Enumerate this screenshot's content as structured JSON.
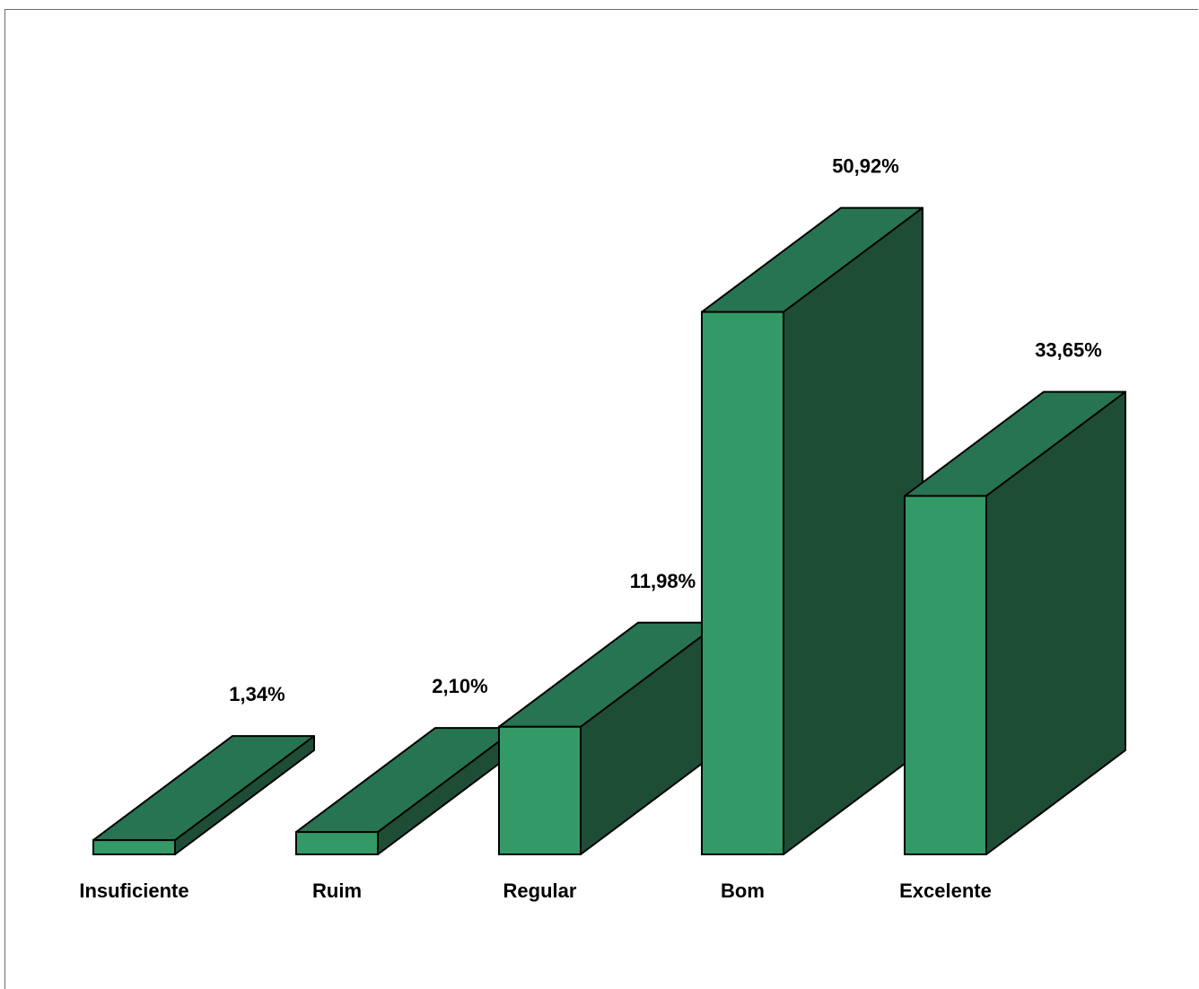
{
  "chart_data": {
    "type": "bar",
    "style": "3d-column",
    "categories": [
      "Insuficiente",
      "Ruim",
      "Regular",
      "Bom",
      "Excelente"
    ],
    "values": [
      1.34,
      2.1,
      11.98,
      50.92,
      33.65
    ],
    "value_labels": [
      "1,34%",
      "2,10%",
      "11,98%",
      "50,92%",
      "33,65%"
    ],
    "title": "",
    "xlabel": "",
    "ylabel": "",
    "ylim": [
      0,
      55
    ],
    "grid": false,
    "legend": "none",
    "colors": {
      "front": "#339966",
      "top": "#277452",
      "side": "#1e4d36",
      "outline": "#000000"
    }
  }
}
